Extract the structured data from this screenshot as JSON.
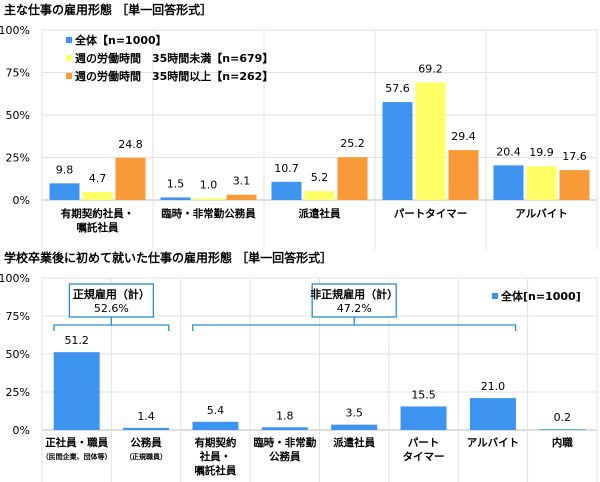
{
  "chart_data": [
    {
      "type": "bar",
      "title": "主な仕事の雇用形態 ［単一回答形式］",
      "ylim": [
        0,
        100
      ],
      "yticks": [
        "0%",
        "25%",
        "50%",
        "75%",
        "100%"
      ],
      "grid": true,
      "legend_position": "top-left",
      "categories": [
        [
          "有期契約社員・",
          "嘱託社員"
        ],
        [
          "臨時・非常勤公務員"
        ],
        [
          "派遣社員"
        ],
        [
          "パートタイマー"
        ],
        [
          "アルバイト"
        ]
      ],
      "series": [
        {
          "name": "全体【n=1000】",
          "color": "#3d94f0",
          "values": [
            9.8,
            1.5,
            10.7,
            57.6,
            20.4
          ]
        },
        {
          "name": "週の労働時間　35時間未満【n=679】",
          "color": "#ffff66",
          "values": [
            4.7,
            1.0,
            5.2,
            69.2,
            19.9
          ]
        },
        {
          "name": "週の労働時間　35時間以上【n=262】",
          "color": "#f99a38",
          "values": [
            24.8,
            3.1,
            25.2,
            29.4,
            17.6
          ]
        }
      ],
      "data_labels": [
        [
          "9.8",
          "1.5",
          "10.7",
          "57.6",
          "20.4"
        ],
        [
          "4.7",
          "1.0",
          "5.2",
          "69.2",
          "19.9"
        ],
        [
          "24.8",
          "3.1",
          "25.2",
          "29.4",
          "17.6"
        ]
      ]
    },
    {
      "type": "bar",
      "title": "学校卒業後に初めて就いた仕事の雇用形態 ［単一回答形式］",
      "ylim": [
        0,
        100
      ],
      "yticks": [
        "0%",
        "25%",
        "50%",
        "75%",
        "100%"
      ],
      "grid": true,
      "legend_position": "top-right",
      "categories": [
        [
          "正社員・職員"
        ],
        [
          "公務員"
        ],
        [
          "有期契約",
          "社員・",
          "嘱託社員"
        ],
        [
          "臨時・非常勤",
          "公務員"
        ],
        [
          "派遣社員"
        ],
        [
          "パート",
          "タイマー"
        ],
        [
          "アルバイト"
        ],
        [
          "内職"
        ]
      ],
      "category_notes": [
        "（民間企業、団体等）",
        "（正規職員）",
        "",
        "",
        "",
        "",
        "",
        ""
      ],
      "series": [
        {
          "name": "全体[n=1000]",
          "color": "#3d94f0",
          "values": [
            51.2,
            1.4,
            5.4,
            1.8,
            3.5,
            15.5,
            21.0,
            0.2
          ]
        }
      ],
      "data_labels": [
        "51.2",
        "1.4",
        "5.4",
        "1.8",
        "3.5",
        "15.5",
        "21.0",
        "0.2"
      ],
      "annotations": [
        {
          "title": "正規雇用（計）",
          "value": "52.6%",
          "span": [
            0,
            1
          ]
        },
        {
          "title": "非正規雇用（計）",
          "value": "47.2%",
          "span": [
            2,
            6
          ]
        }
      ],
      "annotation_color": "#2a8fc8"
    }
  ]
}
